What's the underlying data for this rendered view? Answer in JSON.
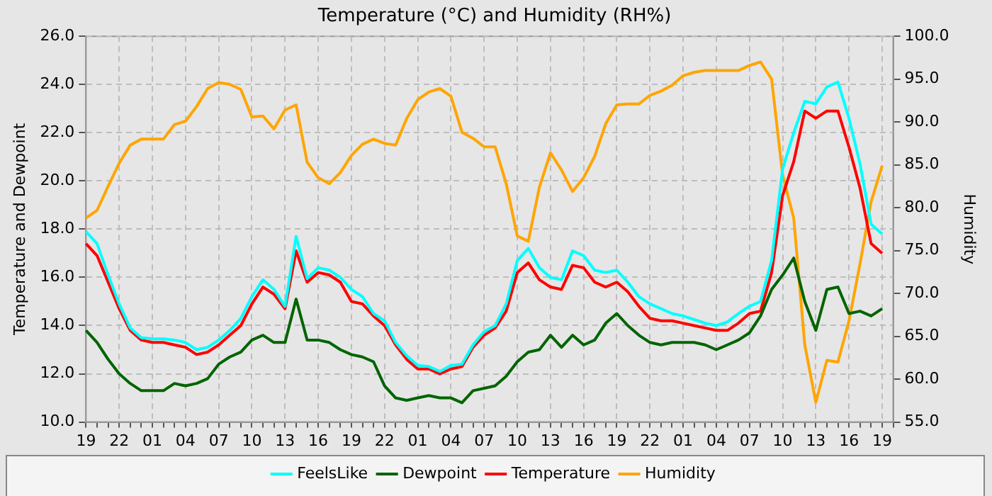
{
  "chart_data": {
    "type": "line",
    "title": "Temperature (°C) and Humidity (RH%)",
    "ylabel": "Temperature and Dewpoint",
    "y2label": "Humidity",
    "categories": [
      "19",
      null,
      null,
      "22",
      null,
      null,
      "01",
      null,
      null,
      "04",
      null,
      null,
      "07",
      null,
      null,
      "10",
      null,
      null,
      "13",
      null,
      null,
      "16",
      null,
      null,
      "19",
      null,
      null,
      "22",
      null,
      null,
      "01",
      null,
      null,
      "04",
      null,
      null,
      "07",
      null,
      null,
      "10",
      null,
      null,
      "13",
      null,
      null,
      "16",
      null,
      null,
      "19",
      null,
      null,
      "22",
      null,
      null,
      "01",
      null,
      null,
      "04",
      null,
      null,
      "07",
      null,
      null,
      "10",
      null,
      null,
      "13",
      null,
      null,
      "16",
      null,
      null,
      "19",
      null
    ],
    "ylim": [
      10,
      26
    ],
    "yticks": [
      {
        "value": 10,
        "label": "10.0"
      },
      {
        "value": 12,
        "label": "12.0"
      },
      {
        "value": 14,
        "label": "14.0"
      },
      {
        "value": 16,
        "label": "16.0"
      },
      {
        "value": 18,
        "label": "18.0"
      },
      {
        "value": 20,
        "label": "20.0"
      },
      {
        "value": 22,
        "label": "22.0"
      },
      {
        "value": 24,
        "label": "24.0"
      },
      {
        "value": 26,
        "label": "26.0"
      }
    ],
    "y2lim": [
      55,
      100
    ],
    "y2ticks": [
      {
        "value": 55,
        "label": "55.0"
      },
      {
        "value": 60,
        "label": "60.0"
      },
      {
        "value": 65,
        "label": "65.0"
      },
      {
        "value": 70,
        "label": "70.0"
      },
      {
        "value": 75,
        "label": "75.0"
      },
      {
        "value": 80,
        "label": "80.0"
      },
      {
        "value": 85,
        "label": "85.0"
      },
      {
        "value": 90,
        "label": "90.0"
      },
      {
        "value": 95,
        "label": "95.0"
      },
      {
        "value": 100,
        "label": "100.0"
      }
    ],
    "grid": true,
    "legend": "bottom",
    "marker": "none",
    "line_style": "solid",
    "series": [
      {
        "name": "FeelsLike",
        "color": "#00ffff",
        "values": [
          17.9,
          17.4,
          16.1,
          14.9,
          13.9,
          13.5,
          13.45,
          13.45,
          13.4,
          13.3,
          13.0,
          13.1,
          13.4,
          13.8,
          14.3,
          15.2,
          15.9,
          15.5,
          14.8,
          17.7,
          15.95,
          16.4,
          16.3,
          16.0,
          15.5,
          15.2,
          14.5,
          14.2,
          13.3,
          12.75,
          12.35,
          12.3,
          12.1,
          12.35,
          12.4,
          13.2,
          13.75,
          14.0,
          14.9,
          16.7,
          17.2,
          16.4,
          16.0,
          15.9,
          17.1,
          16.9,
          16.3,
          16.2,
          16.3,
          15.8,
          15.2,
          14.9,
          14.7,
          14.5,
          14.4,
          14.25,
          14.1,
          14.0,
          14.15,
          14.5,
          14.8,
          15.0,
          16.7,
          20.5,
          22.0,
          23.3,
          23.2,
          23.9,
          24.1,
          22.6,
          20.7,
          18.2,
          17.8,
          null
        ]
      },
      {
        "name": "Dewpoint",
        "color": "#006400",
        "values": [
          13.8,
          13.3,
          12.6,
          12.0,
          11.6,
          11.3,
          11.3,
          11.3,
          11.6,
          11.5,
          11.6,
          11.8,
          12.4,
          12.7,
          12.9,
          13.4,
          13.6,
          13.3,
          13.3,
          15.1,
          13.4,
          13.4,
          13.3,
          13.0,
          12.8,
          12.7,
          12.5,
          11.5,
          11.0,
          10.9,
          11.0,
          11.1,
          11.0,
          11.0,
          10.8,
          11.3,
          11.4,
          11.5,
          11.9,
          12.5,
          12.9,
          13.0,
          13.6,
          13.1,
          13.6,
          13.2,
          13.4,
          14.1,
          14.5,
          14.0,
          13.6,
          13.3,
          13.2,
          13.3,
          13.3,
          13.3,
          13.2,
          13.0,
          13.2,
          13.4,
          13.7,
          14.4,
          15.5,
          16.1,
          16.8,
          15.0,
          13.8,
          15.5,
          15.6,
          14.5,
          14.6,
          14.4,
          14.7,
          null
        ]
      },
      {
        "name": "Temperature",
        "color": "#ff0000",
        "values": [
          17.4,
          16.9,
          15.8,
          14.7,
          13.8,
          13.4,
          13.3,
          13.3,
          13.2,
          13.1,
          12.8,
          12.9,
          13.2,
          13.6,
          14.0,
          14.9,
          15.6,
          15.3,
          14.7,
          17.1,
          15.8,
          16.2,
          16.1,
          15.8,
          15.0,
          14.9,
          14.4,
          14.0,
          13.2,
          12.6,
          12.2,
          12.2,
          12.0,
          12.2,
          12.3,
          13.1,
          13.6,
          13.9,
          14.6,
          16.2,
          16.6,
          15.9,
          15.6,
          15.5,
          16.5,
          16.4,
          15.8,
          15.6,
          15.8,
          15.4,
          14.8,
          14.3,
          14.2,
          14.2,
          14.1,
          14.0,
          13.9,
          13.8,
          13.8,
          14.1,
          14.5,
          14.6,
          16.2,
          19.4,
          20.8,
          22.9,
          22.6,
          22.9,
          22.9,
          21.4,
          19.7,
          17.4,
          17.0,
          null
        ]
      },
      {
        "name": "Humidity",
        "color": "#ffa500",
        "axis": "y2",
        "values": [
          78.8,
          79.7,
          82.5,
          85.2,
          87.3,
          88.0,
          88.0,
          88.0,
          89.7,
          90.1,
          91.8,
          93.9,
          94.6,
          94.4,
          93.8,
          90.6,
          90.7,
          89.2,
          91.4,
          92.0,
          85.3,
          83.5,
          82.8,
          84.1,
          86.1,
          87.4,
          88.0,
          87.5,
          87.3,
          90.4,
          92.6,
          93.5,
          93.9,
          93.0,
          88.8,
          88.1,
          87.1,
          87.1,
          82.8,
          76.7,
          76.1,
          82.4,
          86.4,
          84.4,
          81.9,
          83.5,
          86.0,
          89.8,
          92.0,
          92.1,
          92.1,
          93.1,
          93.6,
          94.3,
          95.4,
          95.8,
          96.0,
          96.0,
          96.0,
          96.0,
          96.6,
          97.0,
          95.0,
          83.8,
          78.8,
          64.0,
          57.3,
          62.2,
          62.0,
          66.8,
          73.5,
          80.7,
          84.9,
          null
        ]
      }
    ]
  }
}
